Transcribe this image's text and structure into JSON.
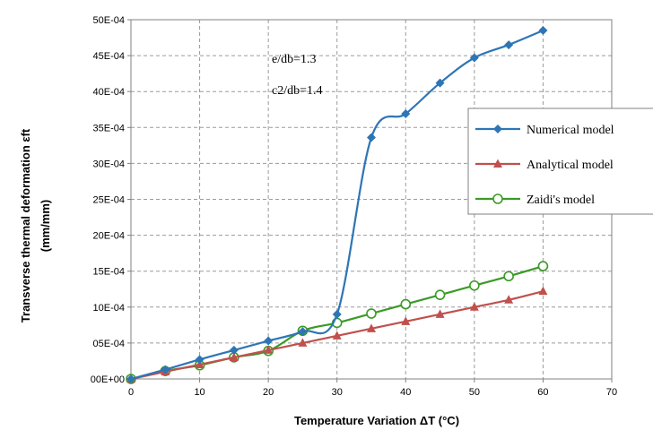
{
  "chart_data": {
    "type": "line",
    "xlabel": "Temperature Variation ΔT (°C)",
    "ylabel_line1": "Transverse thermal deformation εft",
    "ylabel_line2": "(mm/mm)",
    "xlim": [
      0,
      70
    ],
    "ylim": [
      0,
      0.005
    ],
    "x_ticks": [
      "0",
      "10",
      "20",
      "30",
      "40",
      "50",
      "60",
      "70"
    ],
    "y_ticks": [
      "00E+00",
      "05E-04",
      "10E-04",
      "15E-04",
      "20E-04",
      "25E-04",
      "30E-04",
      "35E-04",
      "40E-04",
      "45E-04",
      "50E-04"
    ],
    "grid": true,
    "legend_position": "right",
    "annotations": [
      "e/db=1.3",
      "c2/db=1.4"
    ],
    "series": [
      {
        "name": "Numerical model",
        "color": "#2e75b6",
        "marker": "diamond",
        "x": [
          0,
          5,
          10,
          15,
          20,
          25,
          30,
          35,
          40,
          45,
          50,
          55,
          60
        ],
        "y": [
          0.0,
          0.00013,
          0.00027,
          0.0004,
          0.00053,
          0.00066,
          0.0009,
          0.00336,
          0.00369,
          0.00412,
          0.00447,
          0.00465,
          0.00485
        ]
      },
      {
        "name": "Analytical model",
        "color": "#c0504d",
        "marker": "triangle",
        "x": [
          0,
          5,
          10,
          15,
          20,
          25,
          30,
          35,
          40,
          45,
          50,
          55,
          60
        ],
        "y": [
          0.0,
          0.0001,
          0.0002,
          0.0003,
          0.0004,
          0.0005,
          0.0006,
          0.0007,
          0.0008,
          0.0009,
          0.001,
          0.0011,
          0.00122
        ]
      },
      {
        "name": "Zaidi's model",
        "color": "#3a9a26",
        "marker": "circle",
        "x": [
          0,
          5,
          10,
          15,
          20,
          25,
          30,
          35,
          40,
          45,
          50,
          55,
          60
        ],
        "y": [
          0.0,
          0.00011,
          0.00019,
          0.0003,
          0.00039,
          0.00067,
          0.00078,
          0.00091,
          0.00104,
          0.00117,
          0.0013,
          0.00143,
          0.00157
        ]
      }
    ]
  }
}
